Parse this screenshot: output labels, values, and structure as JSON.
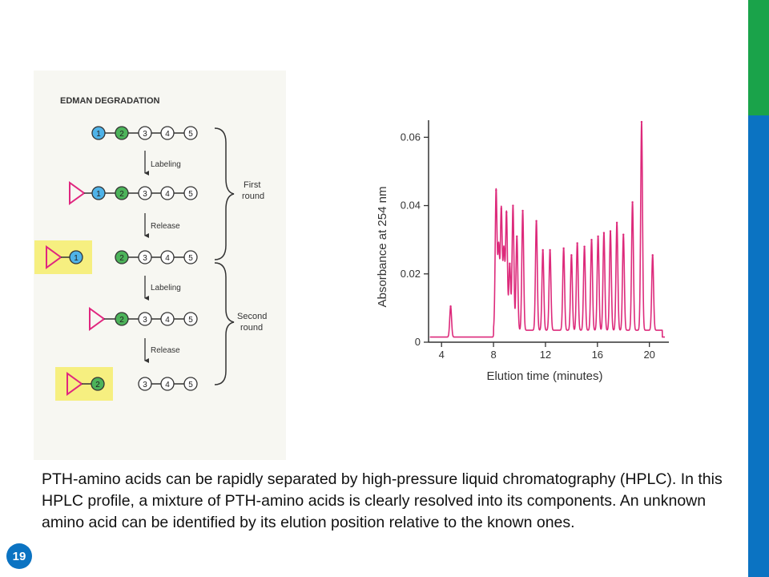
{
  "edman": {
    "title": "EDMAN DEGRADATION",
    "steps": {
      "labeling_1": "Labeling",
      "release_1": "Release",
      "labeling_2": "Labeling",
      "release_2": "Release"
    },
    "rounds": {
      "first_line1": "First",
      "first_line2": "round",
      "second_line1": "Second",
      "second_line2": "round"
    },
    "residues": [
      "1",
      "2",
      "3",
      "4",
      "5"
    ],
    "colors": {
      "residue1": "#4fb3e8",
      "residue2": "#4cb35a",
      "label": "#e0267f",
      "highlight": "#f6ef80",
      "panel": "#f7f7f2"
    }
  },
  "chart_data": {
    "type": "line",
    "xlabel": "Elution time (minutes)",
    "ylabel": "Absorbance at 254 nm",
    "xlim": [
      3,
      21.5
    ],
    "ylim": [
      0,
      0.065
    ],
    "x_ticks": [
      "4",
      "8",
      "12",
      "16",
      "20"
    ],
    "y_ticks": [
      "0",
      "0.02",
      "0.04",
      "0.06"
    ],
    "color": "#dd2a7b",
    "baseline": 0.0015,
    "peaks": [
      {
        "x": 4.7,
        "y": 0.0105
      },
      {
        "x": 8.2,
        "y": 0.0445
      },
      {
        "x": 8.4,
        "y": 0.028
      },
      {
        "x": 8.6,
        "y": 0.039
      },
      {
        "x": 8.8,
        "y": 0.027
      },
      {
        "x": 9.0,
        "y": 0.038
      },
      {
        "x": 9.25,
        "y": 0.023
      },
      {
        "x": 9.5,
        "y": 0.04
      },
      {
        "x": 9.8,
        "y": 0.031
      },
      {
        "x": 10.25,
        "y": 0.0385
      },
      {
        "x": 11.3,
        "y": 0.0355
      },
      {
        "x": 11.8,
        "y": 0.027
      },
      {
        "x": 12.35,
        "y": 0.027
      },
      {
        "x": 13.4,
        "y": 0.0275
      },
      {
        "x": 14.0,
        "y": 0.0255
      },
      {
        "x": 14.45,
        "y": 0.029
      },
      {
        "x": 15.0,
        "y": 0.028
      },
      {
        "x": 15.55,
        "y": 0.03
      },
      {
        "x": 16.05,
        "y": 0.031
      },
      {
        "x": 16.5,
        "y": 0.032
      },
      {
        "x": 17.0,
        "y": 0.0325
      },
      {
        "x": 17.5,
        "y": 0.035
      },
      {
        "x": 18.0,
        "y": 0.0315
      },
      {
        "x": 18.7,
        "y": 0.041
      },
      {
        "x": 19.4,
        "y": 0.0645
      },
      {
        "x": 20.25,
        "y": 0.0255
      }
    ]
  },
  "caption": "PTH-amino acids can be rapidly separated by high-pressure liquid chromatography (HPLC). In this HPLC profile, a mixture of PTH-amino acids is clearly resolved into its components. An unknown amino acid can be identified by its elution position relative to the known ones.",
  "page_number": "19",
  "colors": {
    "accent_green": "#1aa34a",
    "accent_blue": "#0b73c2"
  }
}
